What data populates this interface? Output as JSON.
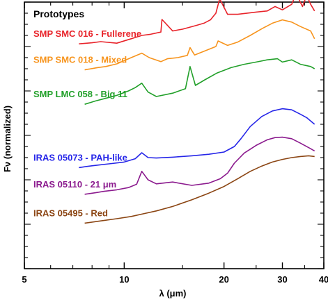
{
  "chart_data": {
    "type": "line",
    "title": "Prototypes",
    "xlabel": "λ (μm)",
    "ylabel": "Fν (normalized)",
    "xscale": "log",
    "xlim": [
      5,
      40
    ],
    "ylim": [
      0,
      12
    ],
    "x_tick_labels": [
      "5",
      "10",
      "20",
      "30",
      "40"
    ],
    "x_ticks": [
      5,
      10,
      20,
      30,
      40
    ],
    "grid": false,
    "legend": "labels placed on the left beside each curve",
    "series": [
      {
        "name": "SMP SMC 016 - Fullerene",
        "color": "#e8232a",
        "x": [
          7.3,
          8.0,
          8.5,
          9.5,
          10.5,
          11.3,
          12.0,
          12.9,
          13.0,
          14.0,
          15.0,
          16.5,
          17.4,
          18.2,
          18.9,
          19.4,
          20.5,
          22.0,
          25.0,
          27.0,
          28.5,
          30.0,
          32.0,
          33.0,
          34.5,
          35.5,
          36.5,
          37.5
        ],
        "y": [
          10.12,
          10.17,
          10.22,
          10.15,
          10.35,
          10.5,
          10.55,
          10.65,
          11.22,
          10.7,
          10.78,
          10.95,
          11.05,
          11.2,
          11.5,
          12.15,
          11.45,
          11.45,
          11.55,
          11.6,
          11.8,
          11.65,
          11.9,
          12.38,
          11.8,
          12.3,
          11.9,
          11.6
        ]
      },
      {
        "name": "SMP SMC 018 - Mixed",
        "color": "#f7941d",
        "x": [
          7.6,
          8.3,
          8.8,
          9.5,
          10.5,
          11.3,
          11.9,
          12.9,
          13.5,
          14.5,
          15.5,
          15.8,
          16.3,
          17.5,
          18.9,
          19.2,
          20.5,
          22.0,
          24.0,
          26.0,
          28.0,
          30.0,
          32.0,
          34.0,
          36.5,
          37.5
        ],
        "y": [
          8.95,
          9.05,
          9.1,
          9.22,
          9.5,
          9.7,
          9.5,
          9.32,
          9.45,
          9.5,
          9.6,
          9.95,
          9.62,
          9.8,
          10.0,
          10.25,
          10.05,
          10.2,
          10.5,
          10.8,
          11.05,
          11.2,
          11.1,
          10.9,
          10.7,
          10.35
        ]
      },
      {
        "name": "SMP LMC 058 - Big 11",
        "color": "#22a02a",
        "x": [
          7.6,
          8.2,
          8.7,
          9.5,
          10.3,
          10.8,
          11.3,
          11.8,
          12.5,
          14.0,
          15.3,
          15.8,
          16.4,
          17.5,
          19.0,
          21.0,
          23.0,
          25.0,
          27.0,
          29.0,
          30.0,
          32.0,
          34.0,
          36.5,
          37.5
        ],
        "y": [
          7.4,
          7.55,
          7.65,
          7.8,
          8.0,
          8.15,
          8.35,
          7.95,
          7.75,
          7.9,
          8.1,
          9.1,
          8.25,
          8.5,
          8.8,
          9.05,
          9.2,
          9.3,
          9.4,
          9.45,
          9.3,
          9.4,
          9.2,
          9.1,
          9.0
        ]
      },
      {
        "name": "IRAS 05073 - PAH-like",
        "color": "#2525e8",
        "x": [
          7.3,
          7.7,
          8.2,
          9.0,
          10.0,
          10.8,
          11.3,
          11.8,
          12.5,
          14.0,
          16.0,
          18.0,
          20.0,
          21.5,
          22.5,
          24.0,
          26.0,
          28.0,
          30.0,
          32.0,
          34.0,
          35.5,
          36.5,
          37.5
        ],
        "y": [
          4.55,
          4.6,
          4.65,
          4.72,
          4.8,
          4.95,
          5.22,
          5.0,
          4.98,
          5.02,
          5.08,
          5.15,
          5.25,
          5.5,
          5.85,
          6.4,
          6.85,
          7.1,
          7.2,
          7.15,
          6.95,
          6.8,
          6.65,
          6.5
        ]
      },
      {
        "name": "IRAS 05110 - 21 μm",
        "color": "#8b1a8e",
        "x": [
          7.6,
          8.2,
          8.7,
          9.5,
          10.3,
          10.9,
          11.3,
          11.8,
          12.5,
          14.0,
          16.0,
          18.0,
          19.5,
          20.5,
          21.5,
          23.0,
          25.0,
          27.0,
          28.5,
          30.0,
          32.0,
          34.0,
          36.5,
          37.5
        ],
        "y": [
          3.35,
          3.42,
          3.48,
          3.55,
          3.65,
          3.8,
          4.38,
          4.0,
          3.82,
          3.9,
          3.75,
          3.85,
          4.05,
          4.3,
          4.75,
          5.2,
          5.55,
          5.8,
          5.9,
          5.92,
          5.85,
          5.65,
          5.4,
          5.3
        ]
      },
      {
        "name": "IRAS 05495 - Red",
        "color": "#8b4513",
        "x": [
          7.6,
          8.5,
          9.5,
          10.5,
          11.5,
          12.5,
          14.0,
          16.0,
          18.0,
          20.0,
          22.0,
          24.0,
          26.0,
          28.0,
          30.0,
          32.0,
          34.0,
          36.0,
          37.5
        ],
        "y": [
          2.05,
          2.15,
          2.25,
          2.35,
          2.48,
          2.6,
          2.8,
          3.1,
          3.4,
          3.7,
          4.05,
          4.38,
          4.62,
          4.8,
          4.92,
          5.0,
          5.05,
          5.08,
          5.05
        ]
      }
    ]
  }
}
